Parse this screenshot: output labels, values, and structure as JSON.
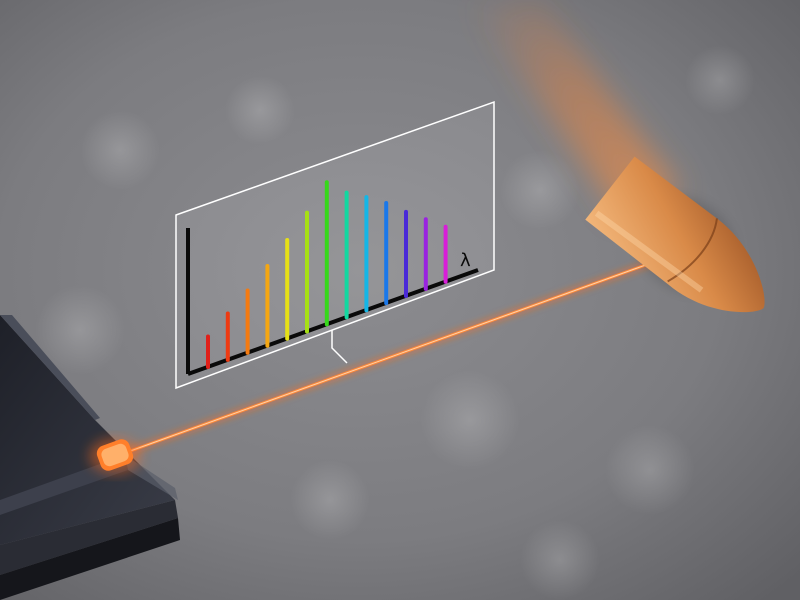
{
  "scene": {
    "description_free": true,
    "colors": {
      "background": "#7e7e82",
      "laser": "#ff7a2a",
      "bullet": "#d98a48",
      "chip": "#2b2d36",
      "panel_border": "#ffffff"
    }
  },
  "spectrum_panel": {
    "axis_label": "λ",
    "bar_levels": [
      0.21,
      0.32,
      0.43,
      0.55,
      0.68,
      0.82,
      0.98,
      0.86,
      0.78,
      0.69,
      0.58,
      0.48,
      0.38
    ],
    "bar_colors": [
      "#e0201a",
      "#ee3a12",
      "#f47a10",
      "#f4a612",
      "#e6e016",
      "#a6e014",
      "#36d81a",
      "#12d8a0",
      "#14b6e6",
      "#1a78ea",
      "#4a2ad8",
      "#9a22e0",
      "#d81ed8"
    ]
  }
}
